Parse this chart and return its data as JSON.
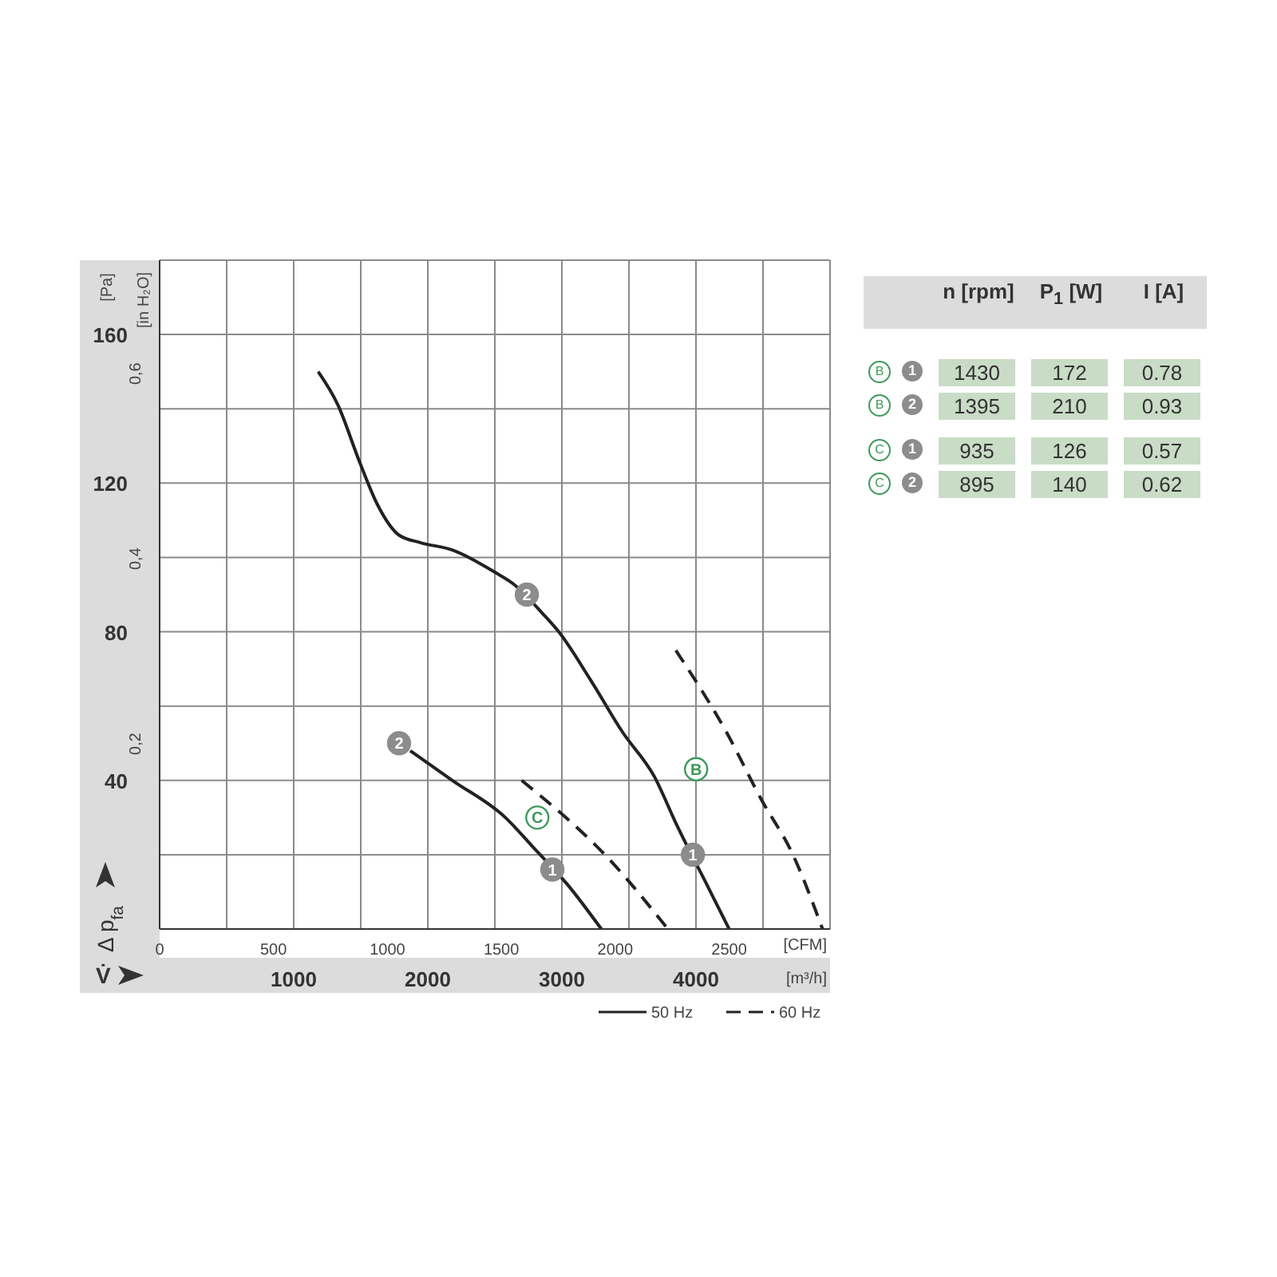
{
  "chart_data": [
    {
      "type": "line",
      "xlabel": "[CFM]",
      "x2label": "[m³/h]",
      "ylabel": "[Pa]",
      "y2label": "[in H₂O]",
      "xlim": [
        0,
        2943
      ],
      "xticks": [
        0,
        500,
        1000,
        1500,
        2000,
        2500
      ],
      "x2lim": [
        0,
        5000
      ],
      "x2ticks": [
        {
          "value": 0,
          "label": null
        },
        {
          "value": 500,
          "label": null
        },
        1000,
        {
          "value": 1500,
          "label": null
        },
        2000,
        {
          "value": 2500,
          "label": null
        },
        3000,
        {
          "value": 3500,
          "label": null
        },
        4000,
        {
          "value": 4500,
          "label": null
        },
        {
          "value": 5000,
          "label": null
        }
      ],
      "ylim": [
        0,
        180
      ],
      "yticks": [
        {
          "value": 0,
          "label": null
        },
        {
          "value": 20,
          "label": null
        },
        40,
        {
          "value": 60,
          "label": null
        },
        80,
        {
          "value": 100,
          "label": null
        },
        120,
        {
          "value": 140,
          "label": null
        },
        160,
        {
          "value": 180,
          "label": null
        }
      ],
      "y2lim": [
        0,
        0.7226
      ],
      "y2ticks": [
        {
          "value": 0.2,
          "label": "0,2"
        },
        {
          "value": 0.4,
          "label": "0,4"
        },
        {
          "value": 0.6,
          "label": "0,6"
        }
      ],
      "grid": true,
      "legend": "bottom right",
      "marker": "none",
      "series": [
        {
          "name": "50 Hz",
          "color": "#222222",
          "line_style": "solid",
          "x": [
            696,
            783,
            876,
            958,
            1051,
            1144,
            1285,
            1472,
            1550,
            1680,
            1752,
            1892,
            2032,
            2172,
            2270,
            2410,
            2500
          ],
          "values": [
            150,
            141,
            126,
            114,
            106,
            104,
            102,
            96,
            93,
            85,
            80,
            67,
            53,
            41,
            28,
            11,
            0
          ]
        },
        {
          "name": "60 Hz",
          "color": "#222222",
          "line_style": "dashed",
          "x": [
            2266,
            2488,
            2640,
            2780,
            2910
          ],
          "values": [
            75,
            53,
            35,
            20,
            0
          ]
        },
        {
          "color": "#222222",
          "line_style": "solid",
          "x": [
            1100,
            1285,
            1518,
            1640,
            1790,
            1939
          ],
          "values": [
            48,
            40,
            30,
            22,
            12,
            0
          ]
        },
        {
          "color": "#222222",
          "line_style": "dashed",
          "x": [
            1589,
            1985,
            2231
          ],
          "values": [
            40,
            18,
            0
          ]
        }
      ],
      "annotations": [
        "Δ p$_{fa}$",
        "V̇",
        {
          "text": "2",
          "x": 1612,
          "y": 90
        },
        {
          "text": "1",
          "x": 2341,
          "y": 20
        },
        {
          "text": "2",
          "x": 1051,
          "y": 50
        },
        {
          "text": "1",
          "x": 1724,
          "y": 16
        },
        {
          "text": "B",
          "x": 2355,
          "y": 43
        },
        {
          "text": "C",
          "x": 1658,
          "y": 30
        }
      ]
    },
    {
      "type": "other",
      "categories": [
        "n [rpm]",
        "P$_{1}$ [W]",
        "I [A]"
      ],
      "y_categories": [
        "B",
        "B",
        "C",
        "C"
      ],
      "y2_categories": [
        "1",
        "2",
        "1",
        "2"
      ],
      "cell_labels": [
        [
          "1430",
          "172",
          "0.78"
        ],
        [
          "1395",
          "210",
          "0.93"
        ],
        [
          "935",
          "126",
          "0.57"
        ],
        [
          "895",
          "140",
          "0.62"
        ]
      ],
      "data_labels": true
    }
  ]
}
